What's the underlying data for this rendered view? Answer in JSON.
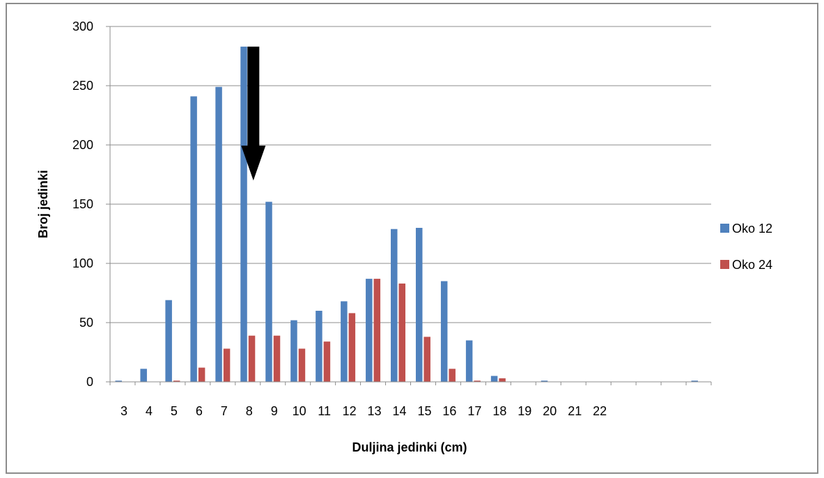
{
  "chart_data": {
    "type": "bar",
    "title": "",
    "xlabel": "Duljina jedinki (cm)",
    "ylabel": "Broj jedinki",
    "ylim": [
      0,
      300
    ],
    "yticks": [
      0,
      50,
      100,
      150,
      200,
      250,
      300
    ],
    "grid": true,
    "legend_position": "right",
    "categories": [
      "3",
      "4",
      "5",
      "6",
      "7",
      "8",
      "9",
      "10",
      "11",
      "12",
      "13",
      "14",
      "15",
      "16",
      "17",
      "18",
      "19",
      "20",
      "21",
      "22",
      "",
      "",
      "",
      ""
    ],
    "series": [
      {
        "name": "Oko 12",
        "color": "#4f81bd",
        "values": [
          1,
          11,
          69,
          241,
          249,
          283,
          152,
          52,
          60,
          68,
          87,
          129,
          130,
          85,
          35,
          5,
          0,
          1,
          0,
          0,
          0,
          0,
          0,
          1
        ]
      },
      {
        "name": "Oko 24",
        "color": "#c0504d",
        "values": [
          0,
          0,
          1,
          12,
          28,
          39,
          39,
          28,
          34,
          58,
          87,
          83,
          38,
          11,
          1,
          3,
          0,
          0,
          0,
          0,
          0,
          0,
          0,
          0
        ]
      }
    ],
    "annotation": {
      "type": "arrow",
      "direction": "down",
      "color": "#000000",
      "category": "8",
      "from_value": 283,
      "to_value": 170
    }
  }
}
